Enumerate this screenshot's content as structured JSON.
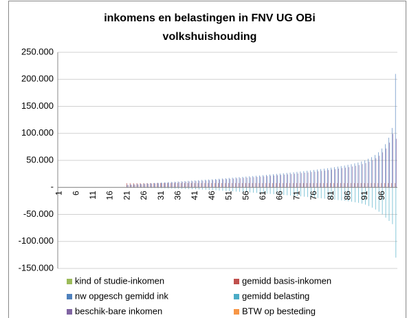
{
  "chart_data": {
    "type": "bar",
    "title": "inkomens en belastingen in FNV UG OBi",
    "subtitle": "volkshuishouding",
    "categories": [
      "1",
      null,
      null,
      null,
      null,
      "6",
      null,
      null,
      null,
      null,
      "11",
      null,
      null,
      null,
      null,
      "16",
      null,
      null,
      null,
      null,
      "21",
      null,
      null,
      null,
      null,
      "26",
      null,
      null,
      null,
      null,
      "31",
      null,
      null,
      null,
      null,
      "36",
      null,
      null,
      null,
      null,
      "41",
      null,
      null,
      null,
      null,
      "46",
      null,
      null,
      null,
      null,
      "51",
      null,
      null,
      null,
      null,
      "56",
      null,
      null,
      null,
      null,
      "61",
      null,
      null,
      null,
      null,
      "66",
      null,
      null,
      null,
      null,
      "71",
      null,
      null,
      null,
      null,
      "76",
      null,
      null,
      null,
      null,
      "81",
      null,
      null,
      null,
      null,
      "86",
      null,
      null,
      null,
      null,
      "91",
      null,
      null,
      null,
      null,
      "96",
      null,
      null,
      null,
      null
    ],
    "series": [
      {
        "name": "kind of studie-inkomen",
        "color": "#9bbb59",
        "values": [
          0,
          0,
          0,
          0,
          0,
          0,
          0,
          0,
          0,
          0,
          0,
          0,
          0,
          0,
          0,
          0,
          0,
          0,
          0,
          0,
          0,
          0,
          0,
          0,
          0,
          0,
          0,
          0,
          0,
          0,
          0,
          0,
          0,
          0,
          0,
          0,
          0,
          0,
          0,
          0,
          0,
          0,
          0,
          0,
          0,
          0,
          0,
          0,
          0,
          0,
          0,
          0,
          0,
          0,
          0,
          0,
          0,
          0,
          0,
          0,
          0,
          0,
          0,
          0,
          0,
          0,
          0,
          0,
          0,
          0,
          0,
          0,
          0,
          0,
          0,
          0,
          0,
          0,
          0,
          0,
          0,
          0,
          0,
          0,
          0,
          0,
          0,
          0,
          0,
          0,
          0,
          0,
          0,
          0,
          0,
          0,
          0,
          0,
          0,
          0
        ]
      },
      {
        "name": "gemidd basis-inkomen",
        "color": "#c0504d",
        "values": [
          0,
          0,
          0,
          0,
          0,
          0,
          0,
          0,
          0,
          0,
          0,
          0,
          0,
          0,
          0,
          0,
          0,
          0,
          0,
          0,
          8000,
          8000,
          8000,
          8000,
          8000,
          8000,
          8000,
          8000,
          8000,
          8000,
          8000,
          8000,
          8000,
          8000,
          8000,
          8000,
          8000,
          8000,
          8000,
          8000,
          8000,
          8000,
          8000,
          8000,
          8000,
          8000,
          8000,
          8000,
          8000,
          8000,
          8000,
          8000,
          8000,
          8000,
          8000,
          8000,
          8000,
          8000,
          8000,
          8000,
          8000,
          8000,
          8000,
          8000,
          8000,
          8000,
          8000,
          8000,
          8000,
          8000,
          8000,
          8000,
          8000,
          8000,
          8000,
          8000,
          8000,
          8000,
          8000,
          8000,
          8000,
          8000,
          8000,
          8000,
          8000,
          8000,
          8000,
          8000,
          8000,
          8000,
          8000,
          8000,
          8000,
          8000,
          8000,
          8000,
          8000,
          8000,
          8000,
          8000
        ]
      },
      {
        "name": "nw opgesch gemidd ink",
        "color": "#4f81bd",
        "values": [
          0,
          0,
          0,
          0,
          0,
          0,
          0,
          0,
          0,
          0,
          0,
          0,
          0,
          0,
          0,
          0,
          0,
          0,
          0,
          0,
          5000,
          5400,
          5800,
          6200,
          6600,
          7000,
          7400,
          7800,
          8200,
          8600,
          9000,
          9400,
          9800,
          10200,
          10600,
          11000,
          11400,
          11800,
          12200,
          12600,
          13000,
          13400,
          13800,
          14200,
          14600,
          15000,
          15500,
          16000,
          16500,
          17000,
          17500,
          18000,
          18500,
          19000,
          19500,
          20000,
          20500,
          21000,
          21500,
          22000,
          22600,
          23200,
          23800,
          24400,
          25000,
          25600,
          26200,
          26800,
          27400,
          28000,
          28700,
          29400,
          30100,
          30800,
          31500,
          32300,
          33100,
          33900,
          34700,
          35500,
          36500,
          37500,
          38500,
          39500,
          40500,
          41700,
          43000,
          44500,
          46000,
          48000,
          50000,
          53000,
          56000,
          60000,
          65000,
          72000,
          80000,
          92000,
          110000,
          210000
        ]
      },
      {
        "name": "gemidd belasting",
        "color": "#4bacc6",
        "values": [
          0,
          0,
          0,
          0,
          0,
          0,
          0,
          0,
          0,
          0,
          0,
          0,
          0,
          0,
          0,
          0,
          0,
          0,
          0,
          0,
          -500,
          -600,
          -700,
          -800,
          -900,
          -1000,
          -1100,
          -1200,
          -1300,
          -1400,
          -1500,
          -1700,
          -1900,
          -2100,
          -2300,
          -2500,
          -2700,
          -2900,
          -3100,
          -3300,
          -3500,
          -3800,
          -4100,
          -4400,
          -4700,
          -5000,
          -5400,
          -5800,
          -6200,
          -6600,
          -7000,
          -7400,
          -7800,
          -8200,
          -8600,
          -9000,
          -9400,
          -9800,
          -10200,
          -10600,
          -11000,
          -11500,
          -12000,
          -12500,
          -13000,
          -13500,
          -14000,
          -14500,
          -15000,
          -15500,
          -16000,
          -16600,
          -17200,
          -17800,
          -18400,
          -19000,
          -19600,
          -20200,
          -20800,
          -21400,
          -22000,
          -22700,
          -23400,
          -24100,
          -24800,
          -25600,
          -26500,
          -27500,
          -28600,
          -30000,
          -32000,
          -34500,
          -37500,
          -41000,
          -45000,
          -50000,
          -56000,
          -62000,
          -68000,
          -130000
        ]
      },
      {
        "name": "beschik-bare inkomen",
        "color": "#8064a2",
        "values": [
          0,
          0,
          0,
          0,
          0,
          0,
          0,
          0,
          0,
          0,
          0,
          0,
          0,
          0,
          0,
          0,
          0,
          0,
          0,
          0,
          4500,
          4900,
          5200,
          5600,
          5900,
          6300,
          6700,
          7000,
          7400,
          7700,
          8100,
          8500,
          8800,
          9200,
          9500,
          9900,
          10300,
          10600,
          11000,
          11300,
          11700,
          12100,
          12400,
          12800,
          13100,
          13500,
          14000,
          14400,
          14900,
          15300,
          15800,
          16200,
          16700,
          17100,
          17600,
          18000,
          18500,
          18900,
          19400,
          19800,
          20300,
          20900,
          21400,
          22000,
          22500,
          23000,
          23600,
          24100,
          24700,
          25200,
          25800,
          26500,
          27100,
          27700,
          28400,
          29100,
          29800,
          30500,
          31200,
          32000,
          32900,
          33800,
          34700,
          35600,
          36500,
          37500,
          38700,
          40000,
          41400,
          43200,
          45000,
          47700,
          50400,
          54000,
          58500,
          64800,
          72000,
          82800,
          99000,
          90000
        ]
      },
      {
        "name": "BTW op besteding",
        "color": "#f79646",
        "values": [
          0,
          0,
          0,
          0,
          0,
          0,
          0,
          0,
          0,
          0,
          0,
          0,
          0,
          0,
          0,
          0,
          0,
          0,
          0,
          0,
          0,
          0,
          0,
          0,
          0,
          0,
          0,
          0,
          0,
          0,
          0,
          0,
          0,
          0,
          0,
          0,
          0,
          0,
          0,
          0,
          0,
          0,
          0,
          0,
          0,
          0,
          0,
          0,
          0,
          0,
          0,
          0,
          0,
          0,
          0,
          0,
          0,
          0,
          0,
          0,
          0,
          0,
          0,
          0,
          0,
          0,
          0,
          0,
          0,
          0,
          0,
          0,
          0,
          0,
          0,
          0,
          0,
          0,
          0,
          0,
          0,
          0,
          0,
          0,
          0,
          0,
          0,
          0,
          0,
          0,
          0,
          0,
          0,
          0,
          0,
          0,
          0,
          0,
          0,
          0
        ]
      }
    ],
    "ylim": [
      -150000,
      250000
    ],
    "yticks": [
      {
        "value": -150000,
        "label": "-150.000"
      },
      {
        "value": -100000,
        "label": "-100.000"
      },
      {
        "value": -50000,
        "label": "-50.000"
      },
      {
        "value": 0,
        "label": "-"
      },
      {
        "value": 50000,
        "label": "50.000"
      },
      {
        "value": 100000,
        "label": "100.000"
      },
      {
        "value": 150000,
        "label": "150.000"
      },
      {
        "value": 200000,
        "label": "200.000"
      },
      {
        "value": 250000,
        "label": "250.000"
      }
    ],
    "grid": true,
    "legend": "bottom"
  }
}
